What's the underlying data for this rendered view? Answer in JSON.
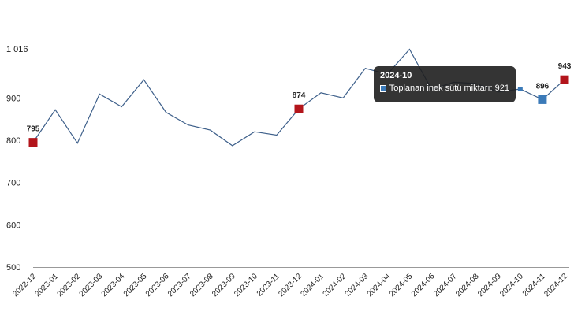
{
  "chart_data": {
    "type": "line",
    "categories": [
      "2022-12",
      "2023-01",
      "2023-02",
      "2023-03",
      "2023-04",
      "2023-05",
      "2023-06",
      "2023-07",
      "2023-08",
      "2023-09",
      "2023-10",
      "2023-11",
      "2023-12",
      "2024-01",
      "2024-02",
      "2024-03",
      "2024-04",
      "2024-05",
      "2024-06",
      "2024-07",
      "2024-08",
      "2024-09",
      "2024-10",
      "2024-11",
      "2024-12"
    ],
    "series": [
      {
        "name": "Toplanan inek sütü miktarı",
        "values": [
          795,
          872,
          793,
          909,
          879,
          943,
          866,
          836,
          824,
          787,
          820,
          812,
          874,
          912,
          900,
          970,
          956,
          1015,
          920,
          937,
          934,
          914,
          921,
          896,
          943
        ],
        "color": "#3d5f8a"
      }
    ],
    "ylim": [
      500,
      1016
    ],
    "yticks": [
      "500",
      "600",
      "700",
      "800",
      "900",
      "1 016"
    ],
    "ytick_values": [
      500,
      600,
      700,
      800,
      900,
      1016
    ],
    "labeled_points": [
      {
        "category": "2022-12",
        "value": 795,
        "label": "795",
        "color": "#b3151b"
      },
      {
        "category": "2023-12",
        "value": 874,
        "label": "874",
        "color": "#b3151b"
      },
      {
        "category": "2024-11",
        "value": 896,
        "label": "896",
        "color": "#3b7ab8"
      },
      {
        "category": "2024-12",
        "value": 943,
        "label": "943",
        "color": "#b3151b"
      }
    ],
    "tooltip": {
      "title": "2024-10",
      "series_name": "Toplanan inek sütü miktarı",
      "value_text": "921"
    },
    "grid": "horizontal-only-baseline",
    "title": "",
    "xlabel": "",
    "ylabel": ""
  }
}
